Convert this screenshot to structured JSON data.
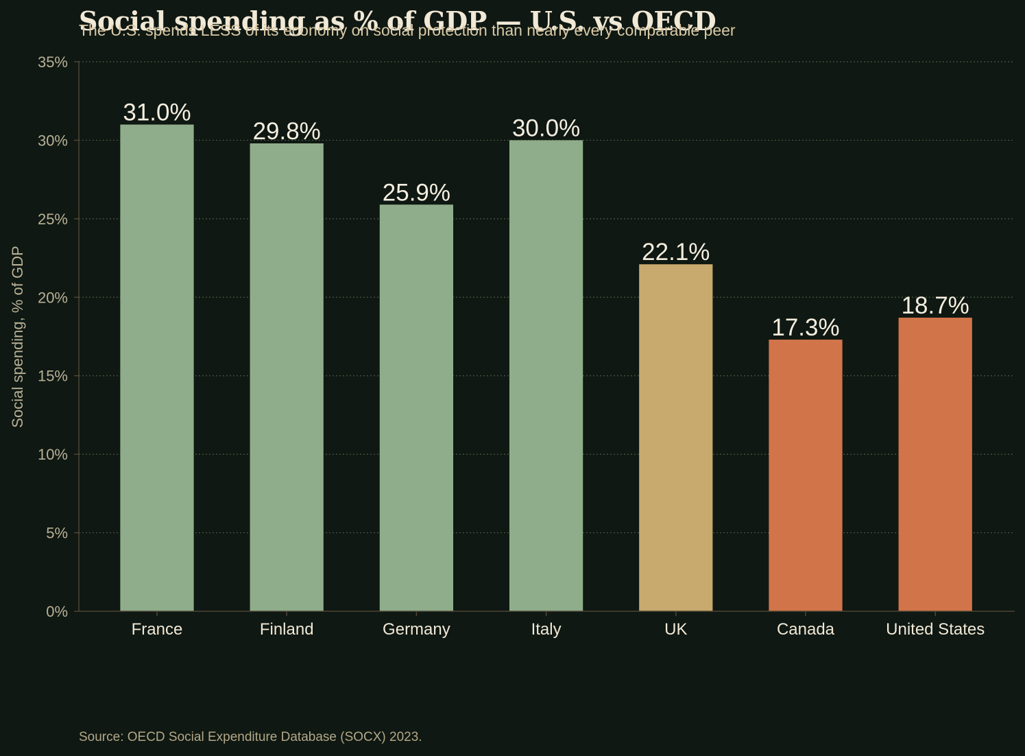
{
  "chart_data": {
    "type": "bar",
    "title": "Social spending as % of GDP — U.S. vs OECD",
    "subtitle": "The U.S. spends LESS of its economy on social protection than nearly every comparable peer",
    "ylabel": "Social spending, % of GDP",
    "xlabel": "",
    "categories": [
      "France",
      "Finland",
      "Germany",
      "Italy",
      "UK",
      "Canada",
      "United States"
    ],
    "values": [
      31.0,
      29.8,
      25.9,
      30.0,
      22.1,
      17.3,
      18.7
    ],
    "value_labels": [
      "31.0%",
      "29.8%",
      "25.9%",
      "30.0%",
      "22.1%",
      "17.3%",
      "18.7%"
    ],
    "colors": [
      "#8fad8b",
      "#8fad8b",
      "#8fad8b",
      "#8fad8b",
      "#c8a96e",
      "#d2744a",
      "#d2744a"
    ],
    "ylim": [
      0,
      35
    ],
    "yticks": [
      0,
      5,
      10,
      15,
      20,
      25,
      30,
      35
    ],
    "ytick_labels": [
      "0%",
      "5%",
      "10%",
      "15%",
      "20%",
      "25%",
      "30%",
      "35%"
    ],
    "grid": "horizontal dotted",
    "source": "Source: OECD Social Expenditure Database (SOCX) 2023."
  }
}
